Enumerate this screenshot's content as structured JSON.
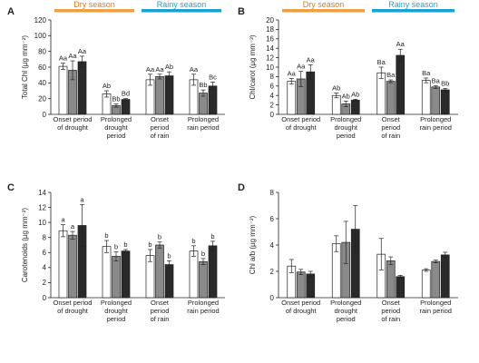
{
  "colors": {
    "open": "#ffffff",
    "gray": "#8a8a8a",
    "dark": "#2a2a2a",
    "dry_band": "#f0a043",
    "rainy_band": "#1aa3d0",
    "dry_text": "#e07a10",
    "rainy_text": "#1aa3d0"
  },
  "chart_data": [
    {
      "type": "bar",
      "panel": "A",
      "ylabel": "Total Chl (µg mm⁻²)",
      "ylim": [
        0,
        120
      ],
      "yticks": [
        "0",
        "20",
        "40",
        "60",
        "80",
        "100",
        "120"
      ],
      "seasons": [
        "Dry season",
        "Rainy season"
      ],
      "categories": [
        [
          "Onset period",
          "of drought"
        ],
        [
          "Prolonged",
          "drought",
          "period"
        ],
        [
          "Onset",
          "period",
          "of rain"
        ],
        [
          "Prolonged",
          "rain period"
        ]
      ],
      "series": [
        {
          "color": "open",
          "values": [
            61,
            26,
            44,
            44
          ],
          "errors": [
            4,
            4,
            7,
            7
          ],
          "labels": [
            "Aa",
            "Ab",
            "Aa",
            "Aa"
          ]
        },
        {
          "color": "gray",
          "values": [
            56,
            11,
            48,
            27
          ],
          "errors": [
            12,
            2,
            3,
            4
          ],
          "labels": [
            "Aa",
            "Bb",
            "Aa",
            "Bb"
          ]
        },
        {
          "color": "dark",
          "values": [
            67,
            19,
            49,
            36
          ],
          "errors": [
            7,
            1,
            5,
            5
          ],
          "labels": [
            "Aa",
            "Bd",
            "Ab",
            "Bc"
          ]
        }
      ]
    },
    {
      "type": "bar",
      "panel": "B",
      "ylabel": "Chl/carot (µg mm⁻²)",
      "ylim": [
        0,
        20
      ],
      "yticks": [
        "0",
        "2",
        "4",
        "6",
        "8",
        "10",
        "12",
        "14",
        "16",
        "18",
        "20"
      ],
      "seasons": [
        "Dry season",
        "Rainy season"
      ],
      "categories": [
        [
          "Onset period",
          "of drought"
        ],
        [
          "Prolonged",
          "drought",
          "period"
        ],
        [
          "Onset",
          "period",
          "of rain"
        ],
        [
          "Prolonged",
          "rain period"
        ]
      ],
      "series": [
        {
          "color": "open",
          "values": [
            7.0,
            4.0,
            8.8,
            7.2
          ],
          "errors": [
            0.6,
            0.5,
            1.2,
            0.5
          ],
          "labels": [
            "Aa",
            "Ab",
            "Ba",
            "Ba"
          ]
        },
        {
          "color": "gray",
          "values": [
            7.5,
            2.2,
            7.0,
            5.8
          ],
          "errors": [
            1.6,
            0.6,
            0.3,
            0.3
          ],
          "labels": [
            "Aa",
            "Ab",
            "Ba",
            "Ba"
          ]
        },
        {
          "color": "dark",
          "values": [
            9.0,
            3.0,
            12.5,
            5.2
          ],
          "errors": [
            1.5,
            0.2,
            1.3,
            0.3
          ],
          "labels": [
            "Aa",
            "Ab",
            "Aa",
            "Bb"
          ]
        }
      ]
    },
    {
      "type": "bar",
      "panel": "C",
      "ylabel": "Carotenoids (µg mm⁻²)",
      "ylim": [
        0,
        14
      ],
      "yticks": [
        "0",
        "2",
        "4",
        "6",
        "8",
        "10",
        "12",
        "14"
      ],
      "categories": [
        [
          "Onset period",
          "of drought"
        ],
        [
          "Prolonged",
          "drought",
          "period"
        ],
        [
          "Onset",
          "period",
          "of rain"
        ],
        [
          "Prolonged",
          "rain period"
        ]
      ],
      "series": [
        {
          "color": "open",
          "values": [
            8.9,
            6.8,
            5.6,
            6.2
          ],
          "errors": [
            0.8,
            0.8,
            0.8,
            0.7
          ],
          "labels": [
            "a",
            "b",
            "b",
            "b"
          ]
        },
        {
          "color": "gray",
          "values": [
            8.3,
            5.5,
            7.0,
            4.8
          ],
          "errors": [
            0.5,
            0.6,
            0.4,
            0.4
          ],
          "labels": [
            "a",
            "b",
            "b",
            "b"
          ]
        },
        {
          "color": "dark",
          "values": [
            9.6,
            6.2,
            4.4,
            6.9
          ],
          "errors": [
            2.8,
            0.2,
            0.5,
            0.6
          ],
          "labels": [
            "a",
            "b",
            "b",
            "b"
          ]
        }
      ]
    },
    {
      "type": "bar",
      "panel": "D",
      "ylabel": "Chl a/b (µg mm⁻²)",
      "ylim": [
        0,
        8
      ],
      "yticks": [
        "0",
        "2",
        "4",
        "6",
        "8"
      ],
      "categories": [
        [
          "Onset period",
          "of drought"
        ],
        [
          "Prolonged",
          "drought",
          "period"
        ],
        [
          "Onset",
          "period",
          "of rain"
        ],
        [
          "Prolonged",
          "rain period"
        ]
      ],
      "series": [
        {
          "color": "open",
          "values": [
            2.4,
            4.1,
            3.3,
            2.1
          ],
          "errors": [
            0.5,
            0.6,
            1.2,
            0.1
          ],
          "labels": [
            "",
            "",
            "",
            ""
          ]
        },
        {
          "color": "gray",
          "values": [
            1.95,
            4.2,
            2.8,
            2.75
          ],
          "errors": [
            0.2,
            1.6,
            0.3,
            0.1
          ],
          "labels": [
            "",
            "",
            "",
            ""
          ]
        },
        {
          "color": "dark",
          "values": [
            1.8,
            5.2,
            1.6,
            3.25
          ],
          "errors": [
            0.2,
            1.8,
            0.1,
            0.2
          ],
          "labels": [
            "",
            "",
            "",
            ""
          ]
        }
      ]
    }
  ]
}
